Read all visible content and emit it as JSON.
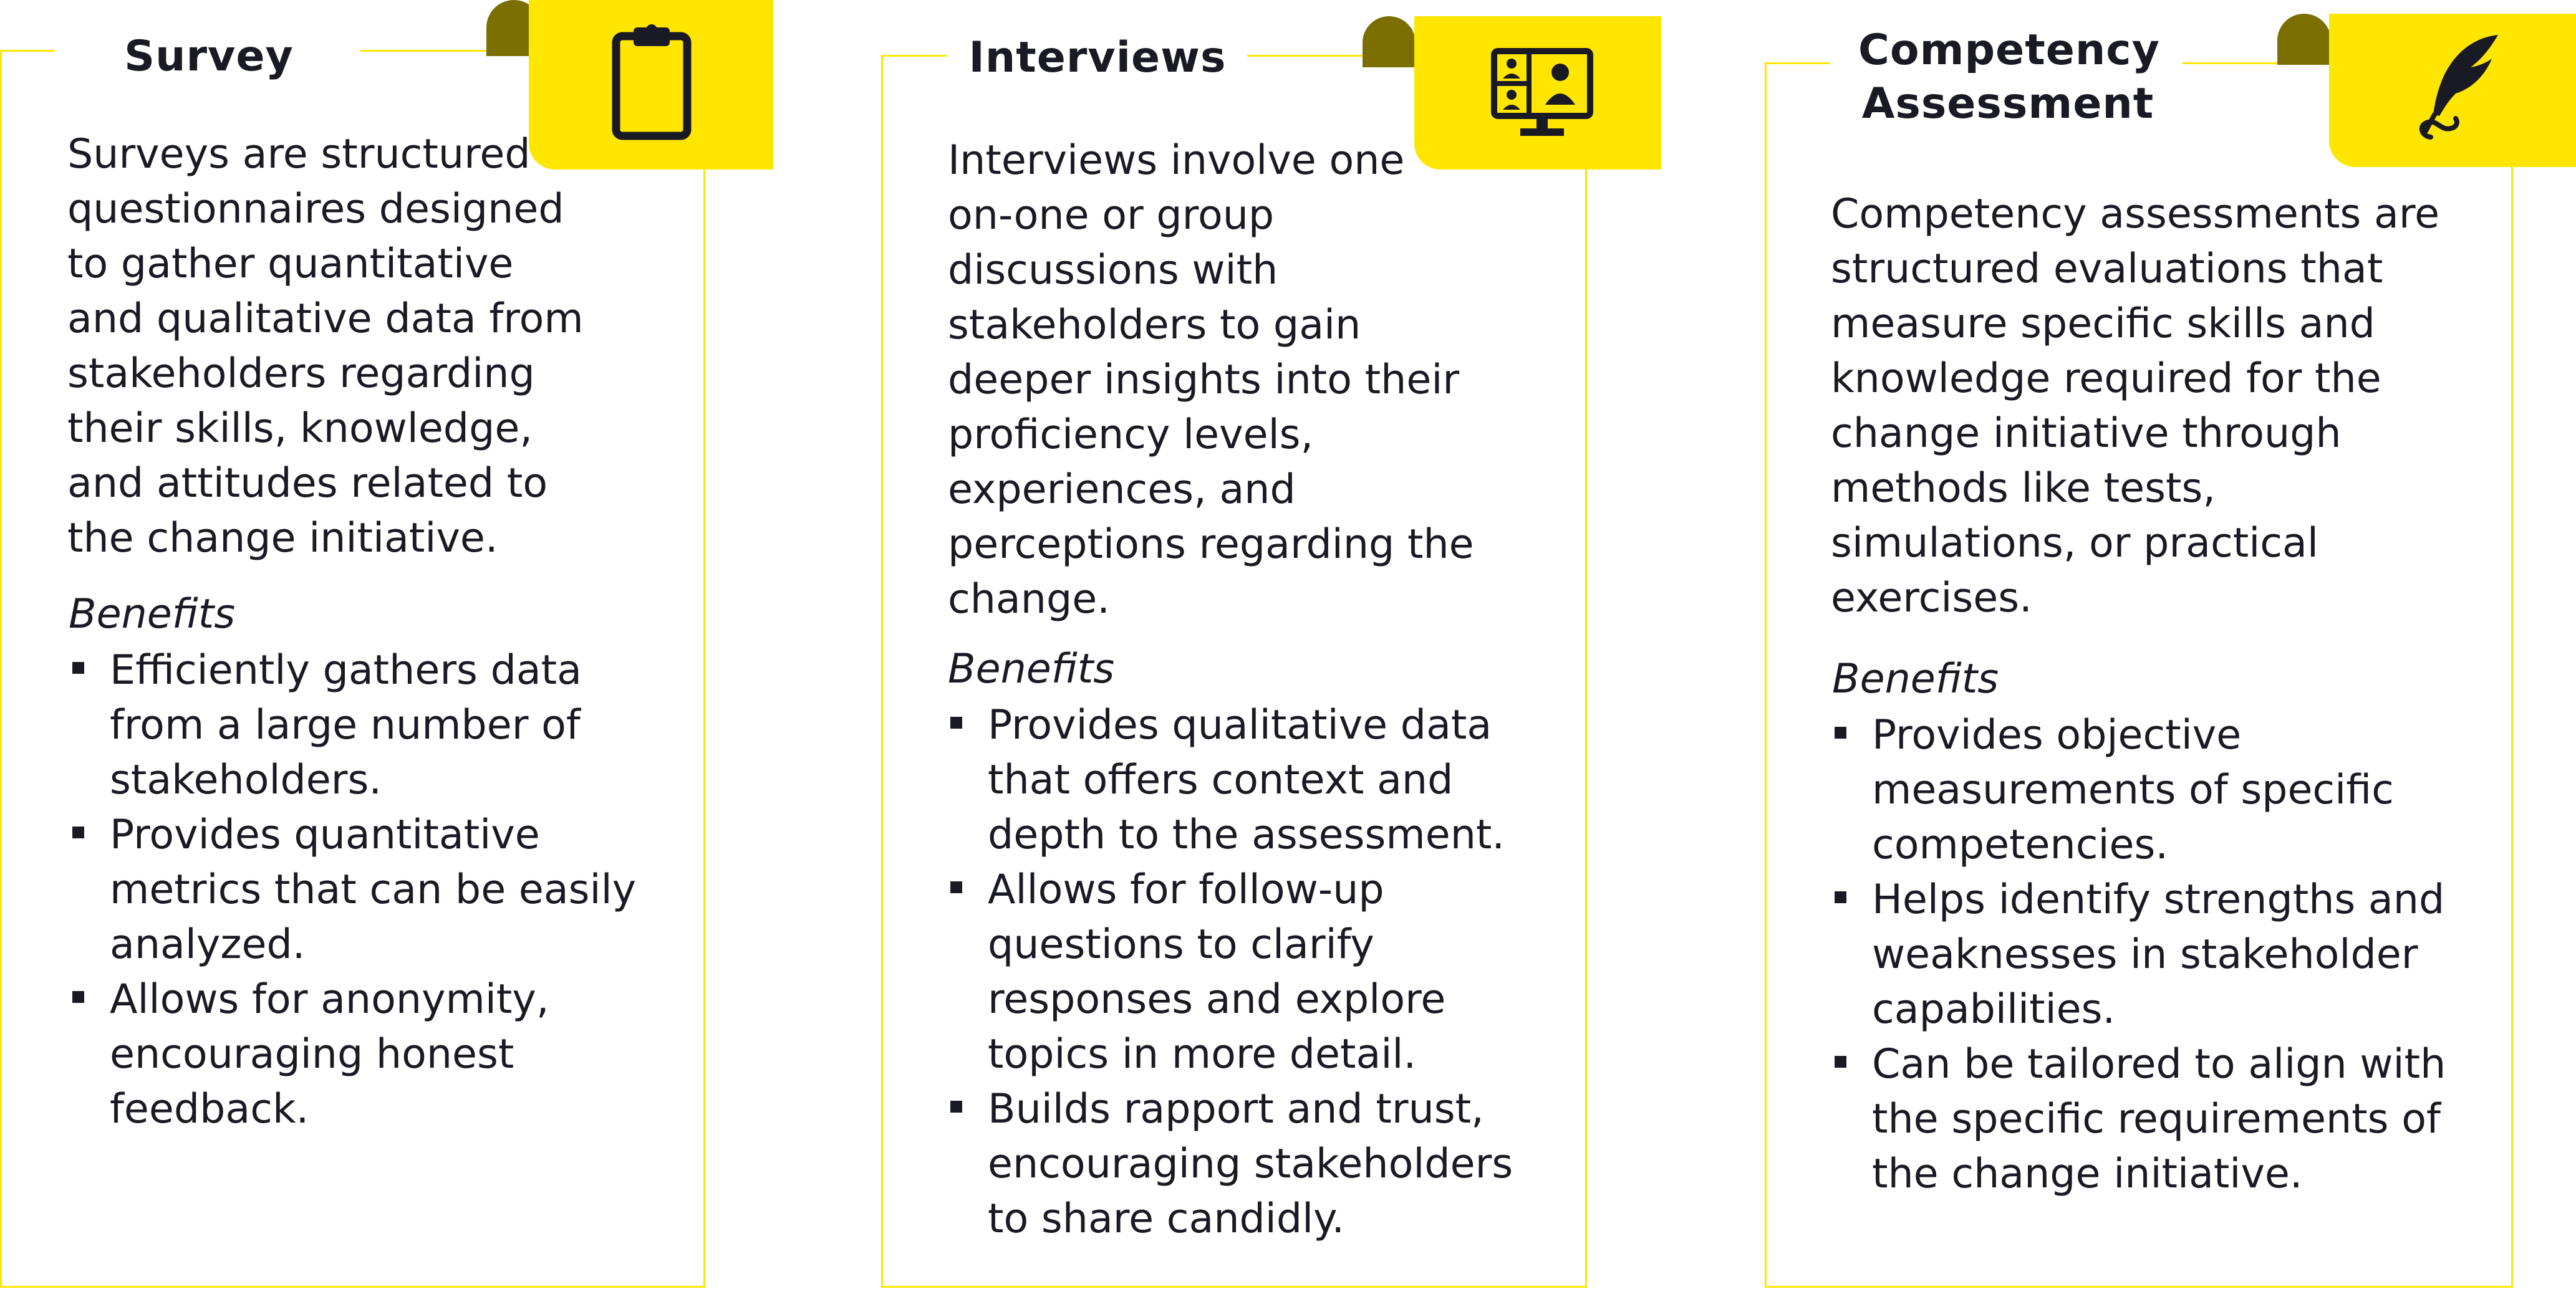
{
  "colors": {
    "accent": "#ffe600",
    "accent_dark": "#7a6f00",
    "text": "#1a1a24",
    "icon": "#1a1a24"
  },
  "panels": [
    {
      "title": "Survey",
      "icon": "clipboard-icon",
      "description": "Surveys are structured\nquestionnaires designed\nto gather quantitative\nand qualitative data from\nstakeholders regarding\ntheir skills, knowledge,\nand attitudes related to\nthe change initiative.",
      "benefits_heading": "Benefits",
      "benefits": [
        "Efficiently gathers data\nfrom a large number of\nstakeholders.",
        "Provides quantitative\nmetrics that can be easily\nanalyzed.",
        "Allows for anonymity,\nencouraging honest\nfeedback."
      ]
    },
    {
      "title": "Interviews",
      "icon": "video-call-icon",
      "description": "Interviews involve one\non-one or group\ndiscussions with\nstakeholders to gain\ndeeper insights into their\nproficiency levels,\nexperiences, and\nperceptions regarding the\nchange.",
      "benefits_heading": "Benefits",
      "benefits": [
        "Provides qualitative data\nthat offers context and\ndepth to the assessment.",
        "Allows for follow-up\nquestions to clarify\nresponses and explore\ntopics in more detail.",
        "Builds rapport and trust,\nencouraging stakeholders\nto share candidly."
      ]
    },
    {
      "title": "Competency\nAssessment",
      "icon": "quill-pen-icon",
      "description": "Competency assessments are\nstructured evaluations that\nmeasure specific skills and\nknowledge required for the\nchange initiative through\nmethods like tests,\nsimulations, or practical\nexercises.",
      "benefits_heading": "Benefits",
      "benefits": [
        "Provides objective\nmeasurements of specific\ncompetencies.",
        "Helps identify strengths and\nweaknesses in stakeholder\ncapabilities.",
        "Can be tailored to align with\nthe specific requirements of\nthe change initiative."
      ]
    }
  ]
}
